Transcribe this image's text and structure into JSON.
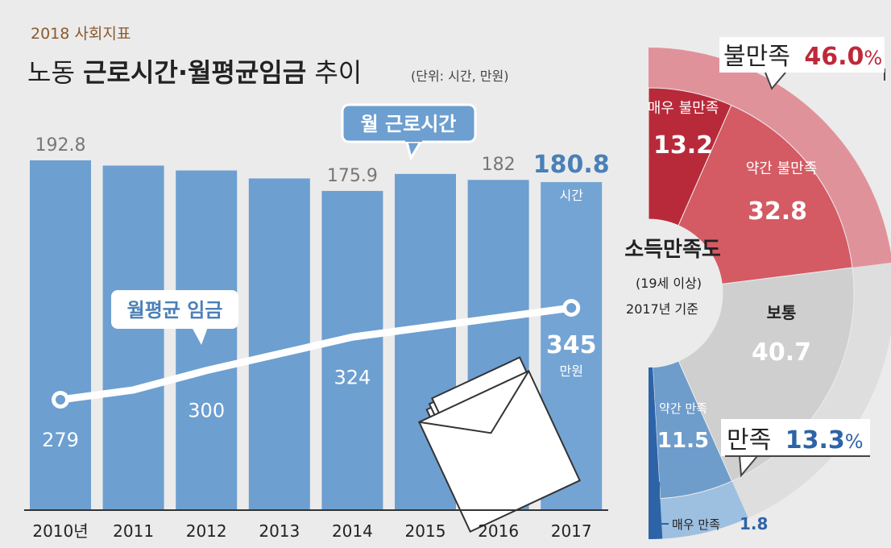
{
  "header": {
    "kicker": "2018 사회지표",
    "title_plain1": "노동 ",
    "title_bold": "근로시간·월평균임금",
    "title_plain2": " 추이",
    "unit": "(단위: 시간, 만원)"
  },
  "chart_data": [
    {
      "type": "bar",
      "title": "노동 근로시간·월평균임금 추이",
      "unit": "(단위: 시간, 만원)",
      "categories": [
        "2010년",
        "2011",
        "2012",
        "2013",
        "2014",
        "2015",
        "2016",
        "2017"
      ],
      "series": [
        {
          "name": "월 근로시간",
          "values": [
            192.8,
            189.9,
            187.2,
            182.8,
            175.9,
            185.3,
            182,
            180.8
          ],
          "labels": [
            "192.8",
            "",
            "",
            "",
            "175.9",
            "",
            "182",
            "180.8"
          ],
          "highlight_unit": "시간"
        },
        {
          "name": "월평균 임금",
          "type": "line",
          "values": [
            279,
            286,
            300,
            312,
            324,
            331,
            338,
            345
          ],
          "labels": [
            "279",
            "",
            "300",
            "",
            "324",
            "",
            "",
            "345"
          ],
          "highlight_unit": "만원"
        }
      ],
      "ylim": [
        0,
        200
      ],
      "wage_ylim": [
        150,
        400
      ]
    },
    {
      "type": "pie",
      "title": "소득만족도",
      "subtitle": "(19세 이상)",
      "note": "2017년 기준",
      "slices": [
        {
          "label": "매우 불만족",
          "value": 13.2,
          "value_label": "13.2",
          "color": "#b82a3a"
        },
        {
          "label": "약간 불만족",
          "value": 32.8,
          "value_label": "32.8",
          "color": "#d45a63"
        },
        {
          "label": "보통",
          "value": 40.7,
          "value_label": "40.7",
          "color": "#cfcfcf"
        },
        {
          "label": "약간 만족",
          "value": 11.5,
          "value_label": "11.5",
          "color": "#6e9ccb"
        },
        {
          "label": "매우 만족",
          "value": 1.8,
          "value_label": "1.8",
          "color": "#2d64a8"
        }
      ],
      "groups": [
        {
          "label": "불만족",
          "value_label": "46.0",
          "percent": "%",
          "value": 46.0,
          "color": "#e0929a"
        },
        {
          "label": "만족",
          "value_label": "13.3",
          "percent": "%",
          "value": 13.3,
          "color": "#9dbfe0"
        }
      ]
    }
  ],
  "colors": {
    "bar": "#6d9fd0",
    "bar_highlight": "#74a4d4",
    "dissatisfied_text": "#c0283a",
    "satisfied_text": "#2d64a8",
    "hours_label": "#4a80b8"
  }
}
